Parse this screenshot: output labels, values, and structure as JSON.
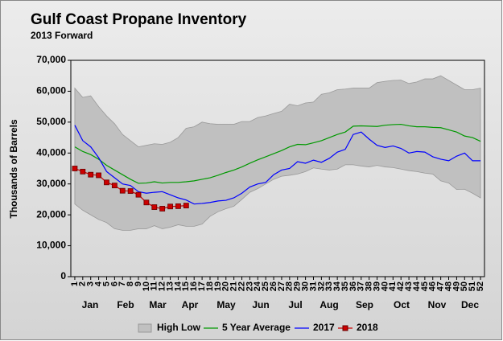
{
  "chart_data": {
    "type": "line",
    "title": "Gulf Coast Propane Inventory",
    "subtitle": "2013 Forward",
    "y_label": "Thousands of Barrels",
    "categories": [
      "1",
      "2",
      "3",
      "4",
      "5",
      "6",
      "7",
      "8",
      "9",
      "10",
      "11",
      "12",
      "13",
      "14",
      "15",
      "16",
      "17",
      "18",
      "19",
      "20",
      "21",
      "22",
      "23",
      "24",
      "25",
      "26",
      "27",
      "28",
      "29",
      "30",
      "31",
      "32",
      "33",
      "34",
      "35",
      "36",
      "37",
      "38",
      "39",
      "40",
      "41",
      "42",
      "43",
      "44",
      "45",
      "46",
      "47",
      "48",
      "49",
      "50",
      "51",
      "52"
    ],
    "month_labels": [
      "Jan",
      "Feb",
      "Mar",
      "Apr",
      "May",
      "Jun",
      "Jul",
      "Aug",
      "Sep",
      "Oct",
      "Nov",
      "Dec"
    ],
    "ylim": [
      0,
      70000
    ],
    "yticks": [
      0,
      {
        "value": 10000,
        "label": "10,000"
      },
      {
        "value": 20000,
        "label": "20,000"
      },
      {
        "value": 30000,
        "label": "30,000"
      },
      {
        "value": 40000,
        "label": "40,000"
      },
      {
        "value": 50000,
        "label": "50,000"
      },
      {
        "value": 60000,
        "label": "60,000"
      },
      {
        "value": 70000,
        "label": "70,000"
      }
    ],
    "grid": false,
    "legend": "bottom",
    "series": [
      {
        "name": "High Low",
        "kind": "band",
        "color": "#c0c0c0",
        "high": [
          61000,
          58000,
          58500,
          55000,
          52000,
          49500,
          46000,
          44000,
          42000,
          42500,
          43000,
          42800,
          43500,
          45000,
          48000,
          48500,
          50000,
          49500,
          49300,
          49300,
          49300,
          50200,
          50200,
          51500,
          52000,
          52800,
          53500,
          55800,
          55300,
          56200,
          56500,
          59000,
          59500,
          60500,
          60700,
          61000,
          61000,
          61000,
          62800,
          63200,
          63500,
          63600,
          62500,
          63000,
          64000,
          64000,
          65000,
          63500,
          62000,
          60500,
          60500,
          61000
        ],
        "low": [
          23500,
          21500,
          20000,
          18500,
          17500,
          15500,
          15000,
          15000,
          15500,
          15500,
          16500,
          15500,
          16000,
          16800,
          16300,
          16300,
          17000,
          19500,
          21000,
          22000,
          22800,
          25000,
          27300,
          28500,
          30000,
          31500,
          32500,
          32800,
          33200,
          34000,
          35200,
          34800,
          34500,
          34800,
          36200,
          36200,
          35800,
          35500,
          36000,
          35500,
          35300,
          34800,
          34300,
          34000,
          33500,
          33200,
          31000,
          30300,
          28200,
          28300,
          27000,
          25500
        ]
      },
      {
        "name": "5 Year Average",
        "kind": "line",
        "color": "#009900",
        "values": [
          42000,
          40500,
          39500,
          38000,
          36000,
          34500,
          33000,
          31500,
          30200,
          30300,
          30700,
          30300,
          30500,
          30500,
          30700,
          31000,
          31500,
          32000,
          32800,
          33700,
          34500,
          35500,
          36700,
          37800,
          38800,
          39800,
          40800,
          42000,
          42800,
          42700,
          43300,
          44000,
          45000,
          46000,
          46800,
          48700,
          48800,
          48700,
          48600,
          49000,
          49200,
          49300,
          48800,
          48500,
          48500,
          48300,
          48200,
          47500,
          46800,
          45500,
          45000,
          43800
        ]
      },
      {
        "name": "2017",
        "kind": "line",
        "color": "#0000ff",
        "values": [
          49000,
          44000,
          42000,
          38500,
          34000,
          32000,
          30000,
          29500,
          27500,
          27000,
          27300,
          27500,
          26500,
          25500,
          24800,
          23500,
          23700,
          24000,
          24500,
          24700,
          25500,
          27000,
          29000,
          30000,
          30500,
          33000,
          34500,
          35000,
          37200,
          36700,
          37700,
          37000,
          38300,
          40300,
          41200,
          46000,
          46800,
          44500,
          42500,
          41800,
          42300,
          41500,
          40000,
          40500,
          40300,
          38800,
          38000,
          37500,
          39000,
          40000,
          37500,
          37500
        ]
      },
      {
        "name": "2018",
        "kind": "marker-line",
        "color": "#cc0000",
        "values": [
          35000,
          34000,
          33000,
          32800,
          30500,
          29500,
          27800,
          27700,
          26500,
          24000,
          22500,
          22000,
          22700,
          22800,
          23000,
          null,
          null,
          null,
          null,
          null,
          null,
          null,
          null,
          null,
          null,
          null,
          null,
          null,
          null,
          null,
          null,
          null,
          null,
          null,
          null,
          null,
          null,
          null,
          null,
          null,
          null,
          null,
          null,
          null,
          null,
          null,
          null,
          null,
          null,
          null,
          null,
          null
        ]
      }
    ]
  }
}
